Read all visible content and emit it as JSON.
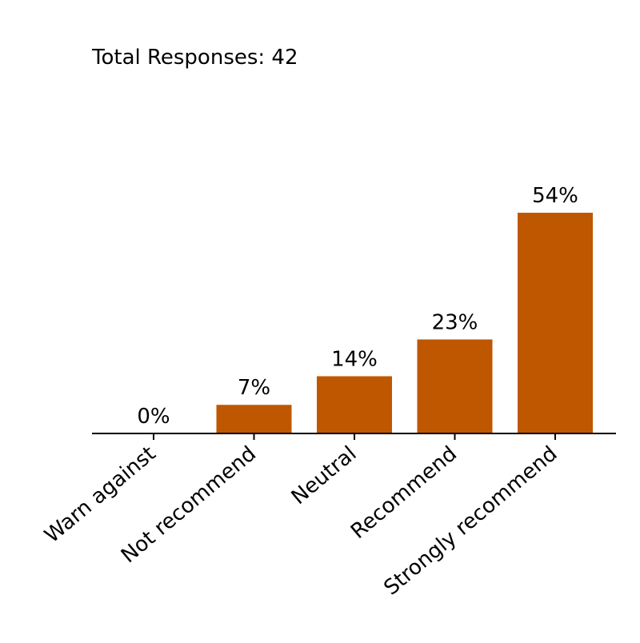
{
  "chart_data": {
    "type": "bar",
    "title": "Total Responses: 42",
    "categories": [
      "Warn against",
      "Not recommend",
      "Neutral",
      "Recommend",
      "Strongly recommend"
    ],
    "values": [
      0,
      7,
      14,
      23,
      54
    ],
    "value_unit": "%",
    "data_labels": [
      "0%",
      "7%",
      "14%",
      "23%",
      "54%"
    ],
    "xlabel": "",
    "ylabel": "",
    "ylim": [
      0,
      59
    ],
    "bar_color": "#BF5700",
    "axis_color": "#000000",
    "grid": false,
    "legend": "none",
    "y_axis_visible": false
  }
}
